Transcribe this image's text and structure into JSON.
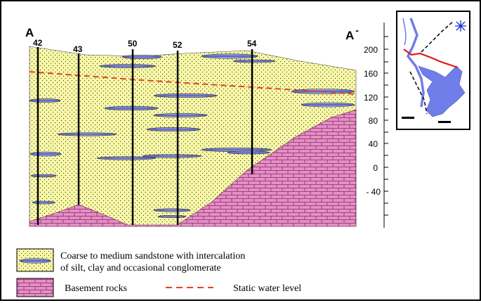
{
  "section": {
    "start_label": "A",
    "end_label": "A",
    "end_mark": "-"
  },
  "wells": [
    "42",
    "43",
    "50",
    "52",
    "54"
  ],
  "elevation_axis": {
    "ticks": [
      "200",
      "160",
      "120",
      "80",
      "40",
      "0",
      "- 40"
    ]
  },
  "legend": {
    "sandstone_line1": "Coarse to medium sandstone with intercalation",
    "sandstone_line2": "of silt, clay and occasional conglomerate",
    "basement": "Basement rocks",
    "water_level": "Static water level"
  },
  "colors": {
    "sandstone": "#f8f8a6",
    "basement": "#e48fc6",
    "lens": "#5a63c6",
    "water_level": "#e8421a",
    "map_water": "#6f7ee8",
    "section_line": "#e01818"
  }
}
